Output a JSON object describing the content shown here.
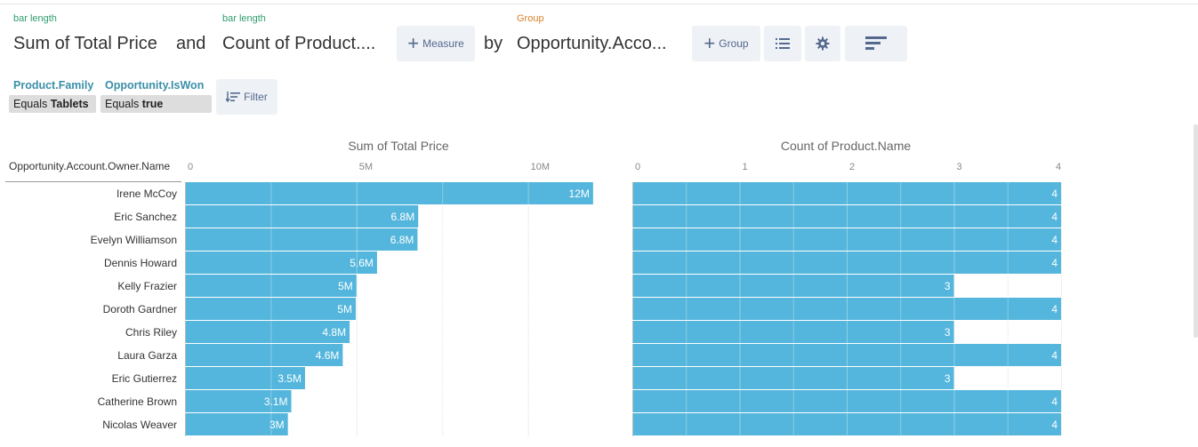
{
  "query": {
    "measure1_label": "bar length",
    "measure1_value": "Sum of Total Price",
    "and_text": "and",
    "measure2_label": "bar length",
    "measure2_value": "Count of Product....",
    "add_measure_label": "Measure",
    "by_text": "by",
    "group_label": "Group",
    "group_value": "Opportunity.Acco...",
    "add_group_label": "Group"
  },
  "filters": [
    {
      "field": "Product.Family",
      "op": "Equals",
      "value": "Tablets"
    },
    {
      "field": "Opportunity.IsWon",
      "op": "Equals",
      "value": "true"
    }
  ],
  "filter_button_label": "Filter",
  "row_header": "Opportunity.Account.Owner.Name",
  "colors": {
    "bar": "#54b6dc",
    "accent_green": "#2e9e6e",
    "accent_orange": "#d9822b",
    "button_bg": "#eef1f6"
  },
  "chart_data": [
    {
      "type": "bar",
      "orientation": "horizontal",
      "title": "Sum of Total Price",
      "categories": [
        "Irene McCoy",
        "Eric Sanchez",
        "Evelyn Williamson",
        "Dennis Howard",
        "Kelly Frazier",
        "Doroth Gardner",
        "Chris Riley",
        "Laura Garza",
        "Eric Gutierrez",
        "Catherine Brown",
        "Nicolas Weaver"
      ],
      "values": [
        11900000,
        6800000,
        6780000,
        5600000,
        5000000,
        4980000,
        4800000,
        4600000,
        3500000,
        3100000,
        3000000
      ],
      "data_labels": [
        "12M",
        "6.8M",
        "6.8M",
        "5.6M",
        "5M",
        "5M",
        "4.8M",
        "4.6M",
        "3.5M",
        "3.1M",
        "3M"
      ],
      "x_ticks": [
        0,
        5000000,
        10000000
      ],
      "x_tick_labels": [
        "0",
        "5M",
        "10M"
      ],
      "xlim": [
        0,
        12500000
      ],
      "grid": true
    },
    {
      "type": "bar",
      "orientation": "horizontal",
      "title": "Count of Product.Name",
      "categories": [
        "Irene McCoy",
        "Eric Sanchez",
        "Evelyn Williamson",
        "Dennis Howard",
        "Kelly Frazier",
        "Doroth Gardner",
        "Chris Riley",
        "Laura Garza",
        "Eric Gutierrez",
        "Catherine Brown",
        "Nicolas Weaver"
      ],
      "values": [
        4,
        4,
        4,
        4,
        3,
        4,
        3,
        4,
        3,
        4,
        4
      ],
      "data_labels": [
        "4",
        "4",
        "4",
        "4",
        "3",
        "4",
        "3",
        "4",
        "3",
        "4",
        "4"
      ],
      "x_ticks": [
        0,
        1,
        2,
        3,
        4
      ],
      "x_tick_labels": [
        "0",
        "1",
        "2",
        "3",
        "4"
      ],
      "xlim": [
        0,
        4
      ],
      "grid": true
    }
  ]
}
